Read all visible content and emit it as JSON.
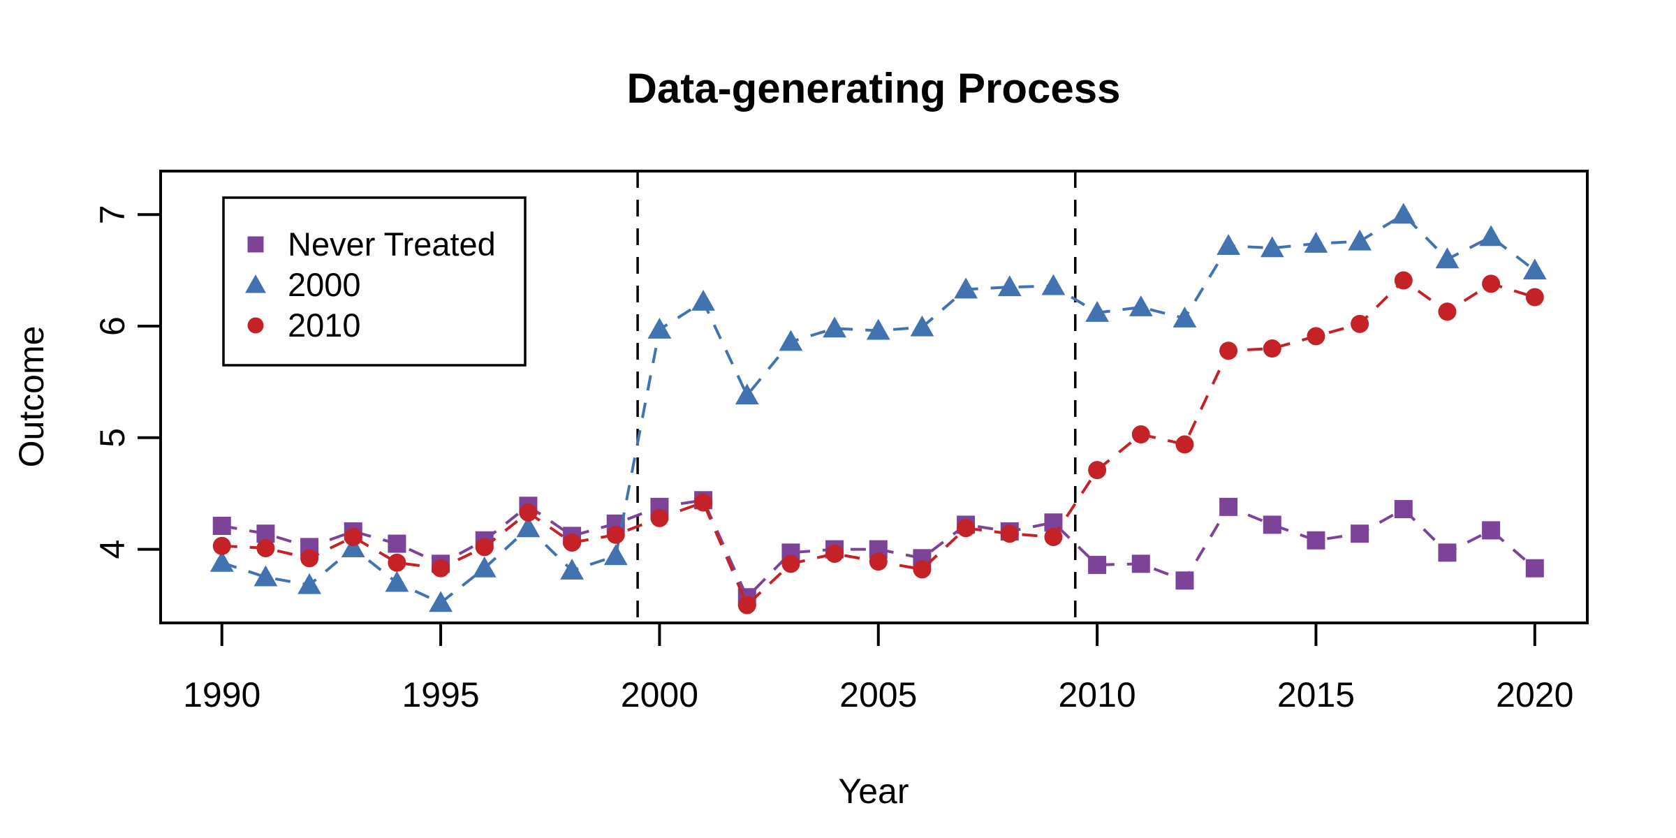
{
  "title": "Data-generating Process",
  "x_axis": {
    "label": "Year",
    "ticks": [
      1990,
      1995,
      2000,
      2005,
      2010,
      2015,
      2020
    ],
    "range": [
      1988.6,
      2021.2
    ]
  },
  "y_axis": {
    "label": "Outcome",
    "ticks": [
      4,
      5,
      6,
      7
    ],
    "range": [
      3.34,
      7.39
    ]
  },
  "treatment_lines": [
    1999.5,
    2009.5
  ],
  "legend": {
    "position": "top-left",
    "items": [
      {
        "label": "Never Treated",
        "marker": "square",
        "color": "#7C4399"
      },
      {
        "label": "2000",
        "marker": "triangle",
        "color": "#4273B1"
      },
      {
        "label": "2010",
        "marker": "circle",
        "color": "#C52227"
      }
    ]
  },
  "colors": {
    "never_treated": "#7C4399",
    "cohort_2000": "#4273B1",
    "cohort_2010": "#C52227",
    "axis": "#000000",
    "background": "#ffffff"
  },
  "chart_data": {
    "type": "line",
    "title": "Data-generating Process",
    "xlabel": "Year",
    "ylabel": "Outcome",
    "xlim": [
      1988.6,
      2021.2
    ],
    "ylim": [
      3.34,
      7.39
    ],
    "grid": false,
    "legend_position": "top-left",
    "line_style": "dashed",
    "vertical_dashed_lines_x": [
      1999.5,
      2009.5
    ],
    "x": [
      1990,
      1991,
      1992,
      1993,
      1994,
      1995,
      1996,
      1997,
      1998,
      1999,
      2000,
      2001,
      2002,
      2003,
      2004,
      2005,
      2006,
      2007,
      2008,
      2009,
      2010,
      2011,
      2012,
      2013,
      2014,
      2015,
      2016,
      2017,
      2018,
      2019,
      2020
    ],
    "series": [
      {
        "name": "Never Treated",
        "marker": "square",
        "color": "#7C4399",
        "values": [
          4.21,
          4.14,
          4.02,
          4.16,
          4.05,
          3.87,
          4.08,
          4.39,
          4.12,
          4.23,
          4.38,
          4.44,
          3.57,
          3.97,
          4.0,
          4.0,
          3.92,
          4.22,
          4.16,
          4.24,
          3.86,
          3.87,
          3.72,
          4.38,
          4.22,
          4.08,
          4.14,
          4.36,
          3.97,
          4.17,
          3.83
        ]
      },
      {
        "name": "2000",
        "marker": "triangle",
        "color": "#4273B1",
        "values": [
          3.88,
          3.75,
          3.68,
          4.01,
          3.7,
          3.52,
          3.83,
          4.19,
          3.81,
          3.94,
          5.97,
          6.22,
          5.38,
          5.86,
          5.98,
          5.96,
          5.99,
          6.33,
          6.35,
          6.36,
          6.12,
          6.17,
          6.07,
          6.72,
          6.7,
          6.74,
          6.76,
          7.0,
          6.6,
          6.8,
          6.5
        ]
      },
      {
        "name": "2010",
        "marker": "circle",
        "color": "#C52227",
        "values": [
          4.03,
          4.01,
          3.92,
          4.11,
          3.88,
          3.83,
          4.02,
          4.33,
          4.06,
          4.13,
          4.28,
          4.42,
          3.5,
          3.87,
          3.96,
          3.89,
          3.82,
          4.19,
          4.14,
          4.11,
          4.71,
          5.03,
          4.94,
          5.78,
          5.8,
          5.91,
          6.02,
          6.41,
          6.13,
          6.38,
          6.26
        ]
      }
    ]
  }
}
